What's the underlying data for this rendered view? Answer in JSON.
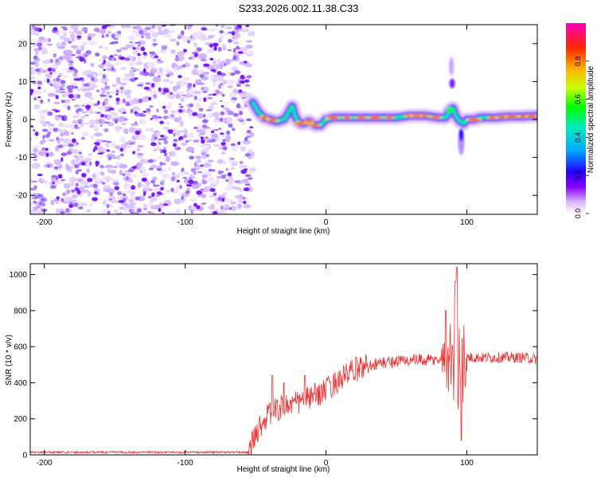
{
  "title": "S233.2026.002.11.38.C33",
  "chart_data": [
    {
      "type": "heatmap",
      "xlabel": "Height of straight line (km)",
      "ylabel": "Frequency (Hz)",
      "xlim": [
        -210,
        150
      ],
      "ylim": [
        -25,
        25
      ],
      "xticks": [
        -200,
        -100,
        0,
        100
      ],
      "yticks": [
        -20,
        -10,
        0,
        10,
        20
      ],
      "colorbar": {
        "label": "Normalized spectral amplitude",
        "range": [
          0,
          1
        ],
        "ticks": [
          0.0,
          0.2,
          0.4,
          0.6,
          0.8
        ],
        "tick_labels": [
          "0.0",
          "0.2",
          "0.4",
          "0.6",
          "0.8"
        ],
        "colormap": [
          "#ffffff",
          "#d8b8ff",
          "#8800ff",
          "#2200ff",
          "#00aaff",
          "#00e8c0",
          "#00ff00",
          "#c8ff00",
          "#ffb000",
          "#ff2800",
          "#ff00c0"
        ]
      },
      "regions": [
        {
          "name": "noise",
          "x_range": [
            -210,
            -52
          ],
          "description_values": {
            "max_amplitude": 0.15
          }
        },
        {
          "name": "signal",
          "x_range": [
            -52,
            150
          ]
        }
      ],
      "ridge_frequency": {
        "x": [
          -52,
          -48,
          -44,
          -40,
          -35,
          -30,
          -27,
          -24,
          -22,
          -20,
          -18,
          -15,
          -12,
          -8,
          -4,
          0,
          5,
          10,
          20,
          30,
          40,
          50,
          60,
          70,
          80,
          85,
          88,
          90,
          92,
          95,
          98,
          100,
          105,
          110,
          120,
          130,
          140,
          150
        ],
        "y": [
          4.5,
          2.0,
          0.5,
          0.0,
          -0.5,
          0.0,
          1.5,
          3.5,
          1.0,
          -0.5,
          -1.0,
          -1.0,
          -0.5,
          -1.5,
          -1.5,
          0.0,
          0.5,
          0.5,
          0.5,
          0.5,
          0.5,
          0.5,
          1.0,
          1.0,
          0.5,
          0.5,
          2.5,
          3.0,
          1.0,
          -0.5,
          -1.0,
          0.0,
          0.0,
          0.5,
          0.5,
          0.8,
          0.8,
          1.0
        ]
      }
    },
    {
      "type": "line",
      "xlabel": "Height of straight line (km)",
      "ylabel": "SNR (10 * v/v)",
      "xlim": [
        -210,
        150
      ],
      "ylim": [
        0,
        1060
      ],
      "xticks": [
        -200,
        -100,
        0,
        100
      ],
      "yticks": [
        0,
        200,
        400,
        600,
        800,
        1000
      ],
      "color": "#ee3333",
      "series": [
        {
          "name": "SNR",
          "envelope_x": [
            -210,
            -55,
            -48,
            -40,
            -30,
            -20,
            -10,
            0,
            10,
            20,
            30,
            40,
            50,
            60,
            70,
            80,
            85,
            90,
            95,
            100,
            110,
            120,
            130,
            140,
            150
          ],
          "envelope_y": [
            15,
            15,
            150,
            230,
            270,
            290,
            320,
            360,
            420,
            470,
            500,
            510,
            520,
            525,
            525,
            525,
            530,
            540,
            520,
            540,
            540,
            540,
            540,
            540,
            530
          ],
          "peaks": [
            {
              "x": -38,
              "y": 440
            },
            {
              "x": -30,
              "y": 400
            },
            {
              "x": -15,
              "y": 440
            },
            {
              "x": 85,
              "y": 800
            },
            {
              "x": 92,
              "y": 960
            },
            {
              "x": 93,
              "y": 1040
            },
            {
              "x": 96,
              "y": 80
            }
          ]
        }
      ]
    }
  ]
}
